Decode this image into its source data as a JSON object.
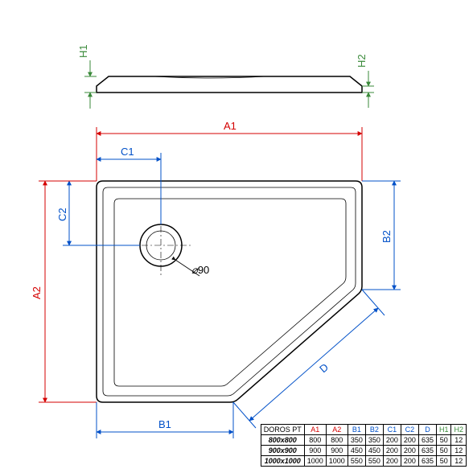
{
  "top": {
    "H1": "H1",
    "H2": "H2"
  },
  "plan": {
    "A1": "A1",
    "A2": "A2",
    "B1": "B1",
    "B2": "B2",
    "C1": "C1",
    "C2": "C2",
    "D": "D",
    "dia": "90"
  },
  "table": {
    "title": "DOROS PT",
    "cols": [
      "A1",
      "A2",
      "B1",
      "B2",
      "C1",
      "C2",
      "D",
      "H1",
      "H2"
    ],
    "colClasses": [
      "hd-red",
      "hd-red",
      "hd-blue",
      "hd-blue",
      "hd-blue",
      "hd-blue",
      "hd-blue",
      "hd-grn",
      "hd-grn"
    ],
    "rows": [
      {
        "h": "800x800",
        "v": [
          "800",
          "800",
          "350",
          "350",
          "200",
          "200",
          "635",
          "50",
          "12"
        ]
      },
      {
        "h": "900x900",
        "v": [
          "900",
          "900",
          "450",
          "450",
          "200",
          "200",
          "635",
          "50",
          "12"
        ]
      },
      {
        "h": "1000x1000",
        "v": [
          "1000",
          "1000",
          "550",
          "550",
          "200",
          "200",
          "635",
          "50",
          "12"
        ]
      }
    ]
  },
  "colors": {
    "red": "#d40000",
    "blue": "#0050c8",
    "green": "#3a8a3a",
    "black": "#000000",
    "bg": "#ffffff"
  }
}
